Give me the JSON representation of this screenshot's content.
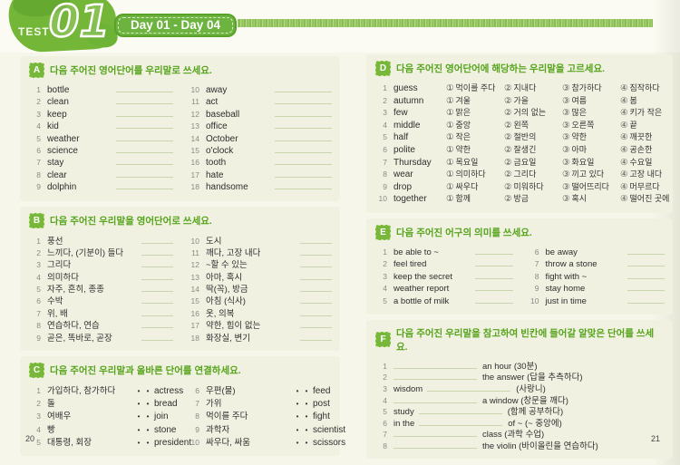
{
  "header": {
    "test_label": "TEST",
    "test_number": "01",
    "day_banner": "Day 01 - Day 04"
  },
  "footer": {
    "left_page_number": "20",
    "right_page_number": "21"
  },
  "colors": {
    "primary_green": "#6cb33f",
    "title_green": "#55a41a",
    "page_beige": "#f1f1e2",
    "answer_line": "#c9d6ad"
  },
  "sections": {
    "A": {
      "letter": "A",
      "title": "다음 주어진 영어단어를 우리말로 쓰세요.",
      "columns": [
        [
          {
            "num": "1",
            "text": "bottle"
          },
          {
            "num": "2",
            "text": "clean"
          },
          {
            "num": "3",
            "text": "keep"
          },
          {
            "num": "4",
            "text": "kid"
          },
          {
            "num": "5",
            "text": "weather"
          },
          {
            "num": "6",
            "text": "science"
          },
          {
            "num": "7",
            "text": "stay"
          },
          {
            "num": "8",
            "text": "clear"
          },
          {
            "num": "9",
            "text": "dolphin"
          }
        ],
        [
          {
            "num": "10",
            "text": "away"
          },
          {
            "num": "11",
            "text": "act"
          },
          {
            "num": "12",
            "text": "baseball"
          },
          {
            "num": "13",
            "text": "office"
          },
          {
            "num": "14",
            "text": "October"
          },
          {
            "num": "15",
            "text": "o'clock"
          },
          {
            "num": "16",
            "text": "tooth"
          },
          {
            "num": "17",
            "text": "hate"
          },
          {
            "num": "18",
            "text": "handsome"
          }
        ]
      ]
    },
    "B": {
      "letter": "B",
      "title": "다음 주어진 우리말을 영어단어로 쓰세요.",
      "columns": [
        [
          {
            "num": "1",
            "text": "풍선"
          },
          {
            "num": "2",
            "text": "느끼다, (기분이) 들다"
          },
          {
            "num": "3",
            "text": "그리다"
          },
          {
            "num": "4",
            "text": "의미하다"
          },
          {
            "num": "5",
            "text": "자주, 흔히, 종종"
          },
          {
            "num": "6",
            "text": "수박"
          },
          {
            "num": "7",
            "text": "위, 배"
          },
          {
            "num": "8",
            "text": "연습하다, 연습"
          },
          {
            "num": "9",
            "text": "곧은, 똑바로, 곧장"
          }
        ],
        [
          {
            "num": "10",
            "text": "도시"
          },
          {
            "num": "11",
            "text": "깨다, 고장 내다"
          },
          {
            "num": "12",
            "text": "~할 수 있는"
          },
          {
            "num": "13",
            "text": "아마, 혹시"
          },
          {
            "num": "14",
            "text": "딱(꼭), 방금"
          },
          {
            "num": "15",
            "text": "아침 (식사)"
          },
          {
            "num": "16",
            "text": "옷, 의복"
          },
          {
            "num": "17",
            "text": "약한, 힘이 없는"
          },
          {
            "num": "18",
            "text": "화장실, 변기"
          }
        ]
      ]
    },
    "C": {
      "letter": "C",
      "title": "다음 주어진 우리말과 올바른 단어를 연결하세요.",
      "columns": [
        [
          {
            "num": "1",
            "korean": "가입하다, 참가하다",
            "english": "actress"
          },
          {
            "num": "2",
            "korean": "돌",
            "english": "bread"
          },
          {
            "num": "3",
            "korean": "여배우",
            "english": "join"
          },
          {
            "num": "4",
            "korean": "빵",
            "english": "stone"
          },
          {
            "num": "5",
            "korean": "대통령, 회장",
            "english": "president"
          }
        ],
        [
          {
            "num": "6",
            "korean": "우편(물)",
            "english": "feed"
          },
          {
            "num": "7",
            "korean": "가위",
            "english": "post"
          },
          {
            "num": "8",
            "korean": "먹이를 주다",
            "english": "fight"
          },
          {
            "num": "9",
            "korean": "과학자",
            "english": "scientist"
          },
          {
            "num": "10",
            "korean": "싸우다, 싸움",
            "english": "scissors"
          }
        ]
      ]
    },
    "D": {
      "letter": "D",
      "title": "다음 주어진 영어단어에 해당하는 우리말을 고르세요.",
      "option_markers": [
        "①",
        "②",
        "③",
        "④"
      ],
      "items": [
        {
          "num": "1",
          "word": "guess",
          "options": [
            "먹이를 주다",
            "지내다",
            "참가하다",
            "짐작하다"
          ]
        },
        {
          "num": "2",
          "word": "autumn",
          "options": [
            "겨울",
            "가을",
            "여름",
            "봄"
          ]
        },
        {
          "num": "3",
          "word": "few",
          "options": [
            "맑은",
            "거의 없는",
            "많은",
            "키가 작은"
          ]
        },
        {
          "num": "4",
          "word": "middle",
          "options": [
            "중앙",
            "왼쪽",
            "오른쪽",
            "끝"
          ]
        },
        {
          "num": "5",
          "word": "half",
          "options": [
            "작은",
            "절반의",
            "약한",
            "깨끗한"
          ]
        },
        {
          "num": "6",
          "word": "polite",
          "options": [
            "약한",
            "잘생긴",
            "아마",
            "공손한"
          ]
        },
        {
          "num": "7",
          "word": "Thursday",
          "options": [
            "목요일",
            "금요일",
            "화요일",
            "수요일"
          ]
        },
        {
          "num": "8",
          "word": "wear",
          "options": [
            "의미하다",
            "그리다",
            "끼고 있다",
            "고장 내다"
          ]
        },
        {
          "num": "9",
          "word": "drop",
          "options": [
            "싸우다",
            "미워하다",
            "떨어뜨리다",
            "머무르다"
          ]
        },
        {
          "num": "10",
          "word": "together",
          "options": [
            "함께",
            "방금",
            "혹시",
            "떨어진 곳에"
          ]
        }
      ]
    },
    "E": {
      "letter": "E",
      "title": "다음 주어진 어구의 의미를 쓰세요.",
      "columns": [
        [
          {
            "num": "1",
            "text": "be able to ~"
          },
          {
            "num": "2",
            "text": "feel tired"
          },
          {
            "num": "3",
            "text": "keep the secret"
          },
          {
            "num": "4",
            "text": "weather report"
          },
          {
            "num": "5",
            "text": "a bottle of milk"
          }
        ],
        [
          {
            "num": "6",
            "text": "be away"
          },
          {
            "num": "7",
            "text": "throw a stone"
          },
          {
            "num": "8",
            "text": "fight with ~"
          },
          {
            "num": "9",
            "text": "stay home"
          },
          {
            "num": "10",
            "text": "just in time"
          }
        ]
      ]
    },
    "F": {
      "letter": "F",
      "title": "다음 주어진 우리말을 참고하여 빈칸에 들어갈 알맞은 단어를 쓰세요.",
      "items": [
        {
          "num": "1",
          "pre": "",
          "post": "an hour (30분)"
        },
        {
          "num": "2",
          "pre": "",
          "post": "the answer (답을 추측하다)"
        },
        {
          "num": "3",
          "pre": "wisdom",
          "post": "(사랑니)"
        },
        {
          "num": "4",
          "pre": "",
          "post": "a window (창문을 깨다)"
        },
        {
          "num": "5",
          "pre": "study",
          "post": "(함께 공부하다)"
        },
        {
          "num": "6",
          "pre": "in the",
          "post": "of ~ (~ 중앙에)"
        },
        {
          "num": "7",
          "pre": "",
          "post": "class (과학 수업)"
        },
        {
          "num": "8",
          "pre": "",
          "post": "the violin (바이올린을 연습하다)"
        }
      ]
    }
  }
}
